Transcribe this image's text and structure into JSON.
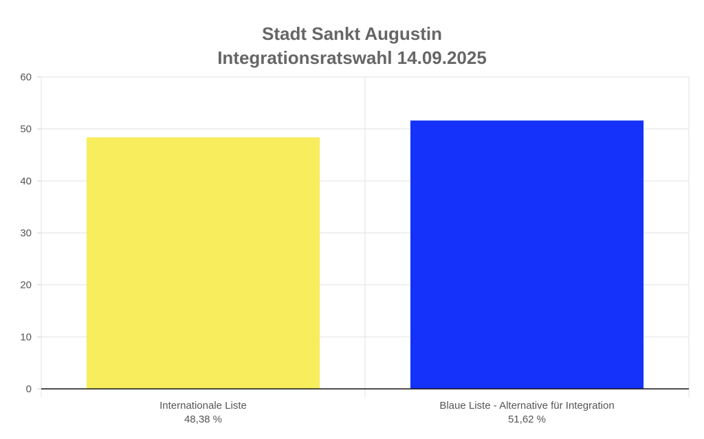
{
  "chart_data": {
    "type": "bar",
    "title": [
      "Stadt Sankt Augustin",
      "Integrationsratswahl 14.09.2025"
    ],
    "categories": [
      "Internationale Liste",
      "Blaue Liste - Alternative für Integration"
    ],
    "category_sublabels": [
      "48,38 %",
      "51,62 %"
    ],
    "values": [
      48.38,
      51.62
    ],
    "colors": [
      "#f7ed5d",
      "#1432fa"
    ],
    "ylim": [
      0,
      60
    ],
    "yticks": [
      0,
      10,
      20,
      30,
      40,
      50,
      60
    ],
    "grid": true,
    "legend": "none"
  }
}
